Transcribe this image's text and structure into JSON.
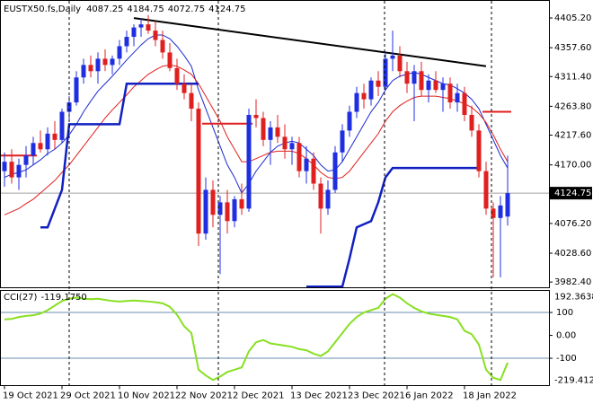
{
  "chart_data": {
    "type": "candlestick",
    "symbol": "EUSTX50.fs,Daily",
    "categories": [
      "19 Oct 2021",
      null,
      null,
      null,
      null,
      null,
      null,
      null,
      "29 Oct 2021",
      null,
      null,
      null,
      null,
      null,
      null,
      null,
      "10 Nov 2021",
      null,
      null,
      null,
      null,
      null,
      null,
      null,
      "22 Nov 2021",
      null,
      null,
      null,
      null,
      null,
      null,
      null,
      "2 Dec 2021",
      null,
      null,
      null,
      null,
      null,
      null,
      null,
      "13 Dec 2021",
      null,
      null,
      null,
      null,
      null,
      null,
      null,
      "23 Dec 2021",
      null,
      null,
      null,
      null,
      null,
      null,
      null,
      "6 Jan 2022",
      null,
      null,
      null,
      null,
      null,
      null,
      null,
      "18 Jan 2022",
      null,
      null,
      null,
      null,
      null,
      null
    ],
    "open": [
      4160,
      4175,
      4150,
      4170,
      4185,
      4205,
      4195,
      4220,
      4210,
      4255,
      4270,
      4310,
      4330,
      4320,
      4340,
      4330,
      4340,
      4360,
      4375,
      4390,
      4395,
      4385,
      4370,
      4350,
      4325,
      4300,
      4285,
      4260,
      4060,
      4130,
      4090,
      4110,
      4080,
      4115,
      4100,
      4250,
      4245,
      4210,
      4230,
      4215,
      4195,
      4205,
      4160,
      4180,
      4140,
      4100,
      4130,
      4190,
      4225,
      4255,
      4285,
      4275,
      4305,
      4295,
      4340,
      4345,
      4320,
      4300,
      4320,
      4290,
      4305,
      4290,
      4300,
      4270,
      4285,
      4250,
      4225,
      4160,
      4100,
      4085,
      4087.25
    ],
    "high": [
      4190,
      4195,
      4180,
      4200,
      4215,
      4225,
      4230,
      4240,
      4260,
      4280,
      4320,
      4340,
      4345,
      4350,
      4355,
      4345,
      4370,
      4385,
      4395,
      4405,
      4410,
      4400,
      4385,
      4365,
      4340,
      4315,
      4300,
      4270,
      4150,
      4145,
      4120,
      4130,
      4120,
      4140,
      4260,
      4275,
      4255,
      4240,
      4250,
      4235,
      4215,
      4215,
      4200,
      4190,
      4150,
      4145,
      4200,
      4235,
      4265,
      4295,
      4300,
      4310,
      4320,
      4350,
      4385,
      4360,
      4335,
      4330,
      4335,
      4315,
      4320,
      4310,
      4310,
      4300,
      4295,
      4265,
      4235,
      4175,
      4110,
      4120,
      4184.75
    ],
    "low": [
      4135,
      4140,
      4130,
      4150,
      4170,
      4190,
      4185,
      4195,
      4205,
      4240,
      4265,
      4300,
      4310,
      4300,
      4320,
      4315,
      4330,
      4350,
      4360,
      4375,
      4380,
      4360,
      4340,
      4320,
      4290,
      4275,
      4240,
      4040,
      4050,
      4070,
      3995,
      4060,
      4070,
      4090,
      4095,
      4230,
      4200,
      4170,
      4205,
      4180,
      4170,
      4150,
      4140,
      4130,
      4060,
      4090,
      4125,
      4175,
      4215,
      4245,
      4260,
      4265,
      4280,
      4290,
      4320,
      4310,
      4285,
      4240,
      4280,
      4270,
      4285,
      4255,
      4260,
      4255,
      4240,
      4215,
      4150,
      4090,
      3990,
      3990,
      4072.75
    ],
    "close": [
      4175,
      4150,
      4170,
      4185,
      4205,
      4195,
      4220,
      4210,
      4255,
      4270,
      4310,
      4330,
      4320,
      4340,
      4330,
      4340,
      4360,
      4375,
      4390,
      4395,
      4385,
      4370,
      4350,
      4325,
      4300,
      4285,
      4260,
      4060,
      4130,
      4090,
      4110,
      4080,
      4115,
      4100,
      4250,
      4245,
      4210,
      4230,
      4215,
      4195,
      4205,
      4160,
      4180,
      4140,
      4100,
      4130,
      4190,
      4225,
      4255,
      4285,
      4275,
      4305,
      4295,
      4340,
      4345,
      4320,
      4300,
      4320,
      4290,
      4305,
      4290,
      4300,
      4270,
      4285,
      4250,
      4225,
      4160,
      4100,
      4085,
      4105,
      4124.75
    ],
    "up_color": "#1f2fe0",
    "down_color": "#e01f1f",
    "series": [
      {
        "color": "#1a2ad0",
        "width": 1,
        "values": [
          4150,
          4155,
          4158,
          4162,
          4170,
          4178,
          4188,
          4195,
          4205,
          4218,
          4235,
          4255,
          4272,
          4288,
          4300,
          4312,
          4325,
          4338,
          4350,
          4362,
          4372,
          4378,
          4378,
          4372,
          4360,
          4345,
          4328,
          4290,
          4260,
          4230,
          4200,
          4170,
          4150,
          4125,
          4140,
          4160,
          4175,
          4190,
          4200,
          4205,
          4208,
          4205,
          4195,
          4185,
          4170,
          4160,
          4162,
          4175,
          4195,
          4215,
          4235,
          4255,
          4270,
          4290,
          4305,
          4312,
          4315,
          4318,
          4315,
          4310,
          4305,
          4300,
          4298,
          4292,
          4285,
          4275,
          4260,
          4235,
          4210,
          4185,
          4165
        ]
      },
      {
        "color": "#e01f1f",
        "width": 1,
        "values": [
          4090,
          4095,
          4100,
          4108,
          4115,
          4125,
          4135,
          4145,
          4158,
          4170,
          4185,
          4200,
          4215,
          4230,
          4245,
          4258,
          4270,
          4282,
          4295,
          4305,
          4315,
          4322,
          4328,
          4330,
          4328,
          4322,
          4315,
          4300,
          4280,
          4260,
          4240,
          4215,
          4195,
          4175,
          4175,
          4180,
          4185,
          4190,
          4192,
          4192,
          4192,
          4188,
          4180,
          4170,
          4158,
          4150,
          4148,
          4150,
          4160,
          4175,
          4190,
          4205,
          4220,
          4240,
          4255,
          4265,
          4272,
          4278,
          4280,
          4280,
          4280,
          4278,
          4276,
          4272,
          4268,
          4262,
          4252,
          4238,
          4218,
          4195,
          4175
        ]
      },
      {
        "color": "#1020c0",
        "width": 2.5,
        "values": [
          null,
          null,
          null,
          null,
          null,
          4070,
          4070,
          4100,
          4130,
          4235,
          4235,
          4235,
          4235,
          4235,
          4235,
          4235,
          4235,
          4300,
          4300,
          4300,
          4300,
          4300,
          4300,
          4300,
          4300,
          4300,
          4300,
          4300,
          null,
          null,
          null,
          null,
          null,
          null,
          null,
          null,
          null,
          null,
          null,
          null,
          null,
          null,
          3975,
          3975,
          3975,
          3975,
          3975,
          3975,
          4020,
          4070,
          4075,
          4080,
          4110,
          4150,
          4165,
          4165,
          4165,
          4165,
          4165,
          4165,
          4165,
          4165,
          4165,
          4165,
          4165,
          4165,
          4165,
          null,
          null,
          null,
          null
        ]
      }
    ],
    "levels": [
      {
        "color": "#e01f1f",
        "value": 4185,
        "start": 0,
        "end": 4
      },
      {
        "color": "#e01f1f",
        "value": 4236,
        "start": 28,
        "end": 34
      },
      {
        "color": "#e01f1f",
        "value": 4255,
        "start": 67,
        "end": 70
      }
    ],
    "trendline": {
      "color": "#000000",
      "x": [
        18,
        67
      ],
      "values": [
        4405,
        4328
      ]
    },
    "ylim": [
      3974,
      4434
    ],
    "yticks": [
      {
        "value": 4405.2,
        "label": "4405.20"
      },
      {
        "value": 4357.6,
        "label": "4357.60"
      },
      {
        "value": 4311.4,
        "label": "4311.40"
      },
      {
        "value": 4263.8,
        "label": "4263.80"
      },
      {
        "value": 4217.6,
        "label": "4217.60"
      },
      {
        "value": 4170,
        "label": "4170.00"
      },
      {
        "value": 4076.2,
        "label": "4076.20"
      },
      {
        "value": 4028.6,
        "label": "4028.60"
      },
      {
        "value": 3982.4,
        "label": "3982.40"
      }
    ],
    "cci": {
      "name": "CCI(27)",
      "color": "#88e022",
      "level_color": "#6a8caf",
      "values": [
        70,
        72,
        80,
        85,
        88,
        95,
        110,
        130,
        150,
        160,
        165,
        160,
        158,
        160,
        155,
        150,
        148,
        150,
        152,
        150,
        148,
        145,
        140,
        125,
        90,
        40,
        10,
        -150,
        -175,
        -195,
        -180,
        -160,
        -150,
        -140,
        -70,
        -30,
        -20,
        -35,
        -40,
        -45,
        -50,
        -60,
        -65,
        -80,
        -90,
        -70,
        -30,
        10,
        50,
        80,
        100,
        110,
        120,
        160,
        180,
        165,
        140,
        120,
        105,
        95,
        90,
        85,
        80,
        70,
        20,
        5,
        -40,
        -150,
        -185,
        -195,
        -119.175
      ],
      "value_labels": [
        null,
        null,
        null,
        null,
        null,
        null,
        null,
        null,
        null,
        null,
        null,
        null,
        null,
        null,
        null,
        null,
        null,
        null,
        null,
        null,
        null,
        null,
        null,
        null,
        null,
        null,
        null,
        null,
        null,
        null,
        null,
        null,
        null,
        null,
        null,
        null,
        null,
        null,
        null,
        null,
        null,
        null,
        null,
        null,
        null,
        null,
        null,
        null,
        null,
        null,
        null,
        null,
        null,
        null,
        null,
        null,
        null,
        null,
        null,
        null,
        null,
        null,
        null,
        null,
        null,
        null,
        null,
        null,
        null,
        null,
        "-119.1750"
      ],
      "y2lim": [
        -219.4121,
        192.3638
      ],
      "y2ticks": [
        100,
        {
          "value": 0,
          "label": "0.00"
        },
        -100
      ],
      "levels": [
        100,
        -100
      ]
    }
  }
}
